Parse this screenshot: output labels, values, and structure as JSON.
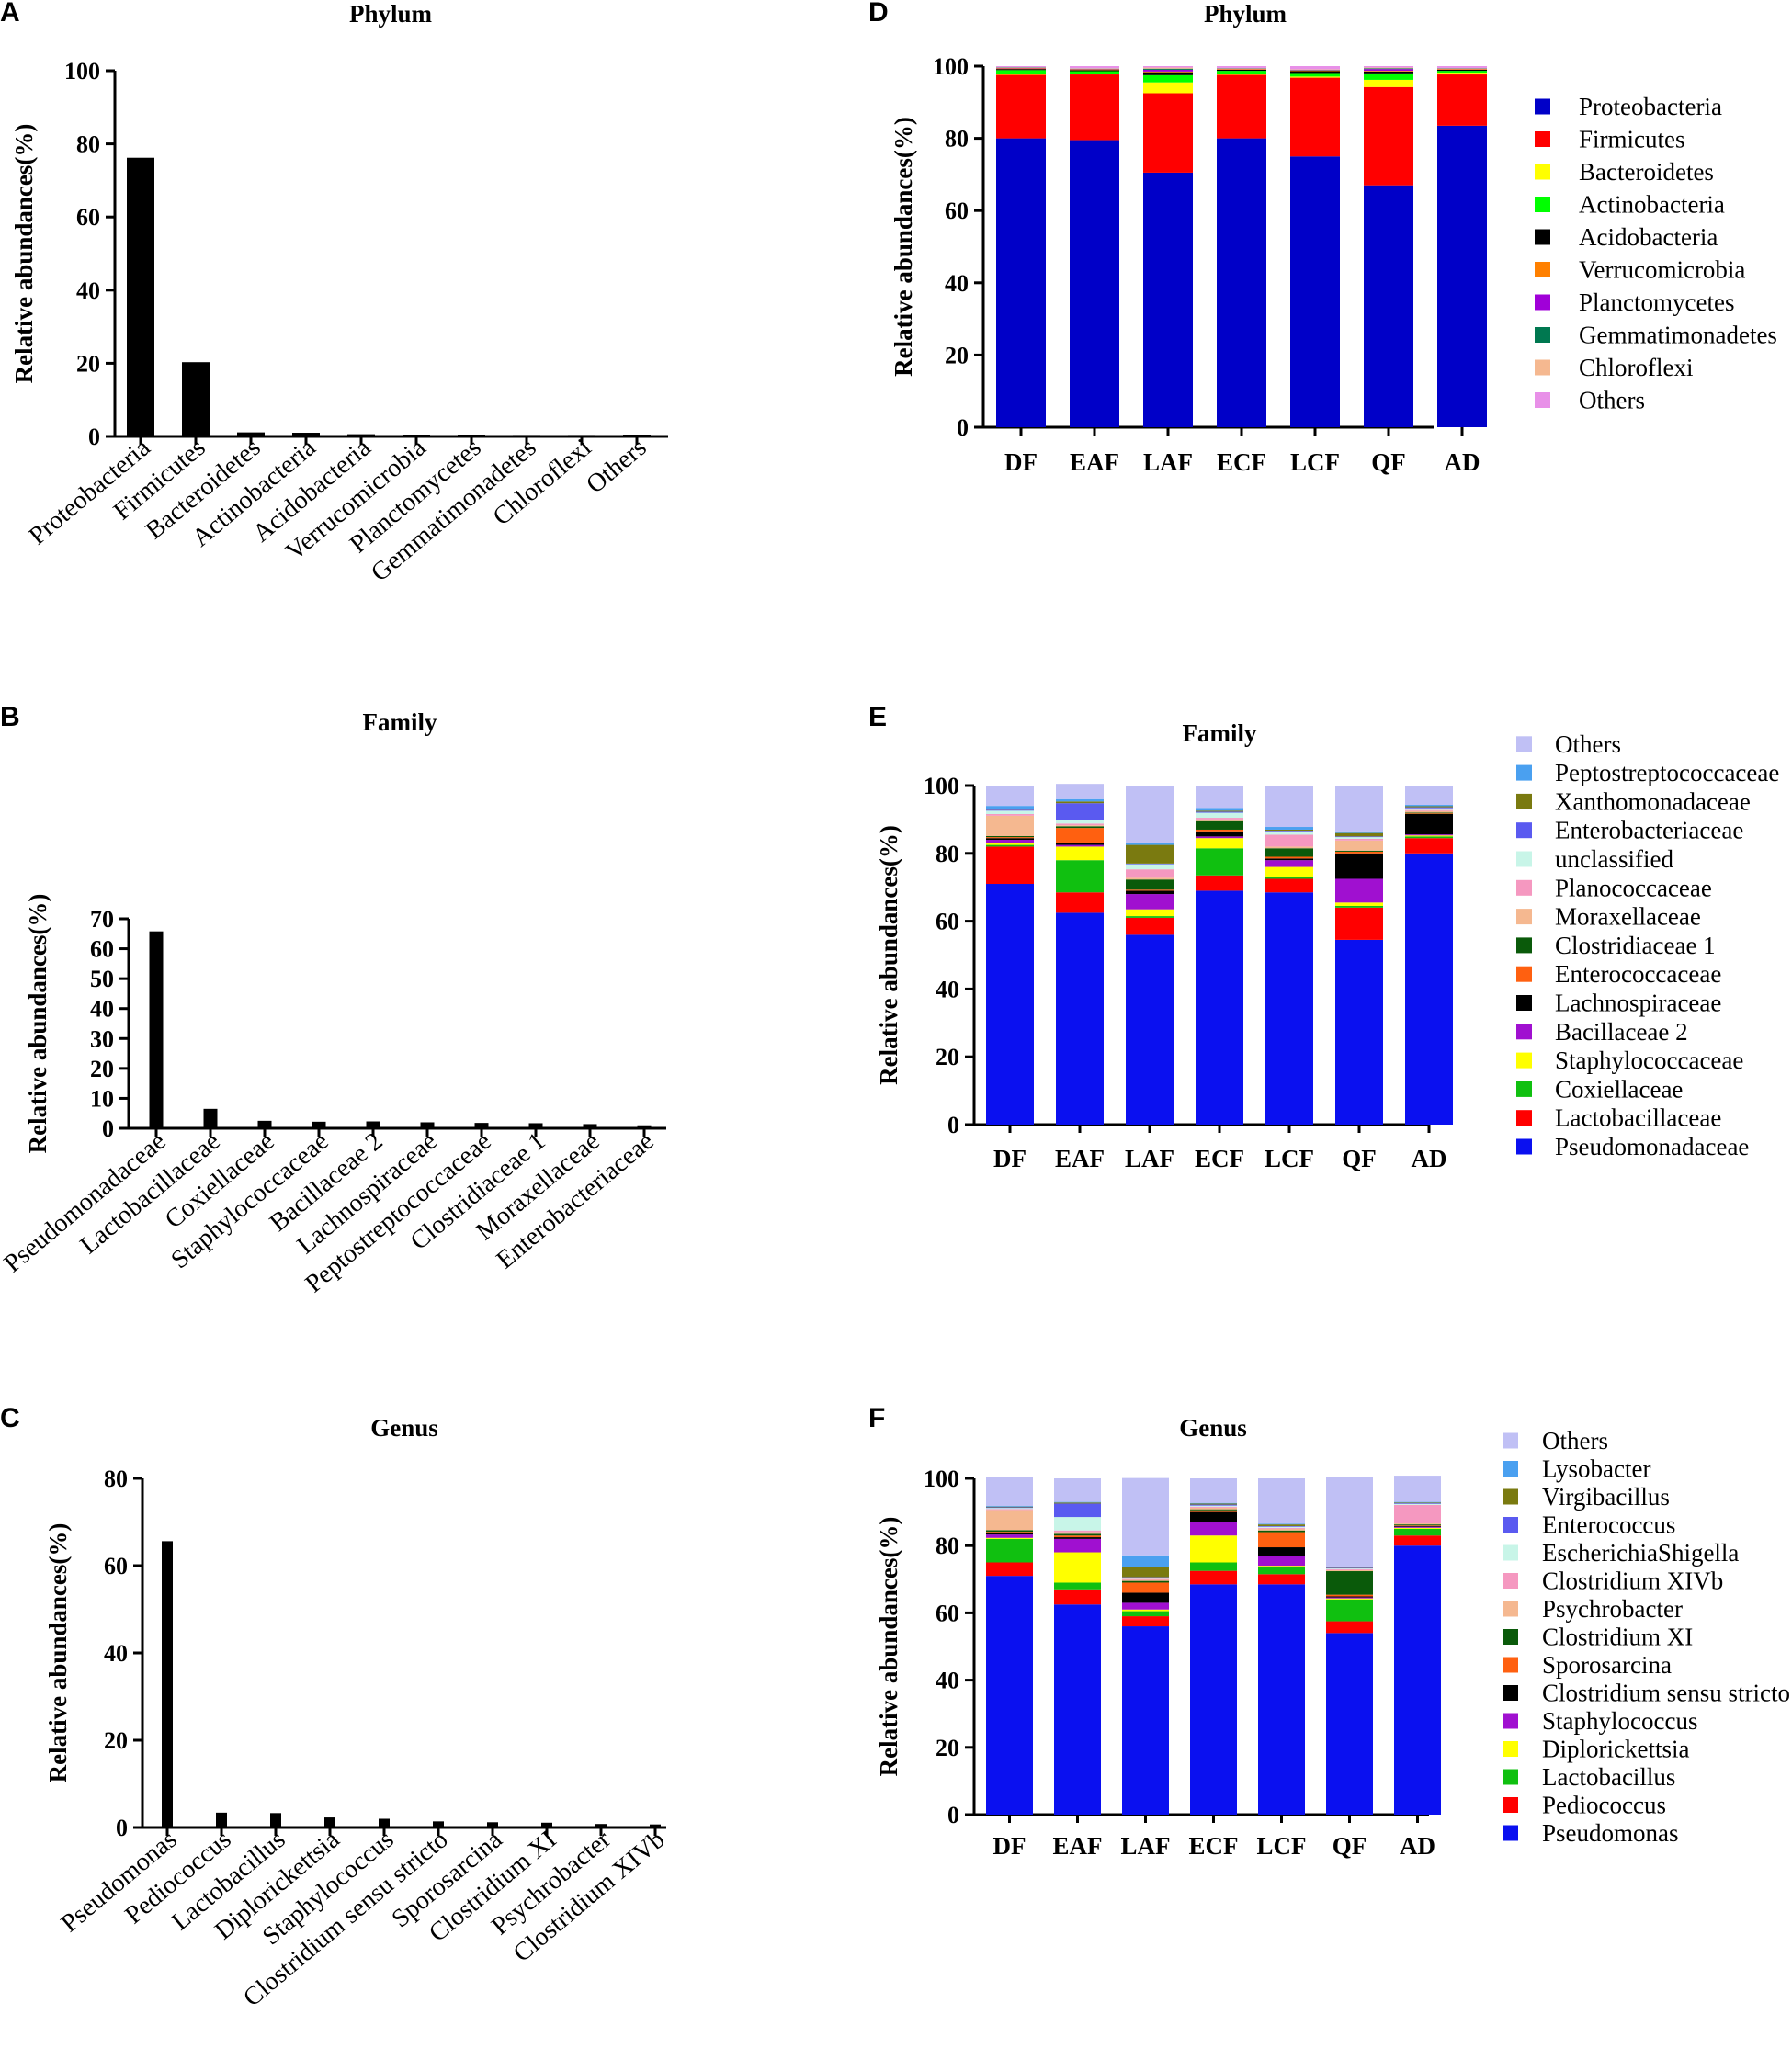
{
  "chart_data": [
    {
      "panel": "A",
      "type": "bar",
      "title": "Phylum",
      "xlabel": "",
      "ylabel": "Relative abundances(%)",
      "ylim": [
        0,
        100
      ],
      "yticks": [
        0,
        20,
        40,
        60,
        80,
        100
      ],
      "categories": [
        "Proteobacteria",
        "Firmicutes",
        "Bacteroidetes",
        "Actinobacteria",
        "Acidobacteria",
        "Verrucomicrobia",
        "Planctomycetes",
        "Gemmatimonadetes",
        "Chloroflexi",
        "Others"
      ],
      "values": [
        76.2,
        20.3,
        1.1,
        1.0,
        0.6,
        0.5,
        0.5,
        0.4,
        0.4,
        0.5
      ]
    },
    {
      "panel": "B",
      "type": "bar",
      "title": "Family",
      "xlabel": "",
      "ylabel": "Relative abundances(%)",
      "ylim": [
        0,
        70
      ],
      "yticks": [
        0,
        10,
        20,
        30,
        40,
        50,
        60,
        70
      ],
      "categories": [
        "Pseudomonadaceae",
        "Lactobacillaceae",
        "Coxiellaceae",
        "Staphylococcaceae",
        "Bacillaceae 2",
        "Lachnospiraceae",
        "Peptostreptococcaceae",
        "Clostridiaceae 1",
        "Moraxellaceae",
        "Enterobacteriaceae"
      ],
      "values": [
        65.8,
        6.5,
        2.5,
        2.2,
        2.3,
        2.0,
        1.8,
        1.7,
        1.4,
        1.0
      ]
    },
    {
      "panel": "C",
      "type": "bar",
      "title": "Genus",
      "xlabel": "",
      "ylabel": "Relative abundances(%)",
      "ylim": [
        0,
        80
      ],
      "yticks": [
        0,
        20,
        40,
        60,
        80
      ],
      "categories": [
        "Pseudomonas",
        "Pediococcus",
        "Lactobacillus",
        "Diplorickettsia",
        "Staphylococcus",
        "Clostridium sensu stricto",
        "Sporosarcina",
        "Clostridium XI",
        "Psychrobacter",
        "Clostridium XIVb"
      ],
      "values": [
        65.6,
        3.4,
        3.3,
        2.3,
        2.0,
        1.4,
        1.2,
        1.1,
        0.8,
        0.7
      ]
    },
    {
      "panel": "D",
      "type": "bar",
      "stacked": true,
      "title": "Phylum",
      "xlabel": "",
      "ylabel": "Relative abundances(%)",
      "ylim": [
        0,
        100
      ],
      "yticks": [
        0,
        20,
        40,
        60,
        80,
        100
      ],
      "categories": [
        "DF",
        "EAF",
        "LAF",
        "ECF",
        "LCF",
        "QF",
        "AD"
      ],
      "legend_position": "right",
      "series": [
        {
          "name": "Proteobacteria",
          "color": "#0000c8",
          "values": [
            80.0,
            79.5,
            70.5,
            80.0,
            75.0,
            67.0,
            83.5
          ]
        },
        {
          "name": "Firmicutes",
          "color": "#ff0000",
          "values": [
            17.6,
            18.2,
            22.0,
            17.6,
            21.8,
            27.2,
            14.2
          ]
        },
        {
          "name": "Bacteroidetes",
          "color": "#ffff00",
          "values": [
            0.3,
            0.2,
            3.0,
            0.3,
            0.3,
            2.0,
            0.5
          ]
        },
        {
          "name": "Actinobacteria",
          "color": "#00ff00",
          "values": [
            1.0,
            0.7,
            2.0,
            0.8,
            1.0,
            1.8,
            0.5
          ]
        },
        {
          "name": "Acidobacteria",
          "color": "#000000",
          "values": [
            0.3,
            0.3,
            0.8,
            0.3,
            0.5,
            0.5,
            0.3
          ]
        },
        {
          "name": "Verrucomicrobia",
          "color": "#ff8000",
          "values": [
            0.2,
            0.2,
            0.2,
            0.2,
            0.2,
            0.2,
            0.2
          ]
        },
        {
          "name": "Planctomycetes",
          "color": "#a000d8",
          "values": [
            0.1,
            0.1,
            0.5,
            0.1,
            0.1,
            0.5,
            0.1
          ]
        },
        {
          "name": "Gemmatimonadetes",
          "color": "#007850",
          "values": [
            0.1,
            0.1,
            0.3,
            0.1,
            0.1,
            0.2,
            0.1
          ]
        },
        {
          "name": "Chloroflexi",
          "color": "#f5b890",
          "values": [
            0.1,
            0.1,
            0.3,
            0.1,
            0.1,
            0.2,
            0.1
          ]
        },
        {
          "name": "Others",
          "color": "#e890e8",
          "values": [
            0.3,
            0.6,
            0.4,
            0.5,
            0.9,
            0.4,
            0.5
          ]
        }
      ]
    },
    {
      "panel": "E",
      "type": "bar",
      "stacked": true,
      "title": "Family",
      "xlabel": "",
      "ylabel": "Relative abundances(%)",
      "ylim": [
        0,
        100
      ],
      "yticks": [
        0,
        20,
        40,
        60,
        80,
        100
      ],
      "categories": [
        "DF",
        "EAF",
        "LAF",
        "ECF",
        "LCF",
        "QF",
        "AD"
      ],
      "legend_position": "right",
      "series": [
        {
          "name": "Pseudomonadaceae",
          "color": "#0a10f0",
          "values": [
            71.0,
            62.5,
            56.0,
            69.0,
            68.5,
            54.5,
            80.0
          ]
        },
        {
          "name": "Lactobacillaceae",
          "color": "#ff0000",
          "values": [
            11.0,
            6.0,
            5.0,
            4.5,
            4.0,
            9.5,
            4.5
          ]
        },
        {
          "name": "Coxiellaceae",
          "color": "#10c010",
          "values": [
            0.5,
            9.5,
            0.5,
            8.0,
            0.5,
            0.5,
            0.5
          ]
        },
        {
          "name": "Staphylococcaceae",
          "color": "#ffff00",
          "values": [
            0.5,
            4.0,
            2.0,
            3.0,
            3.0,
            1.0,
            0.3
          ]
        },
        {
          "name": "Bacillaceae 2",
          "color": "#a010d0",
          "values": [
            1.0,
            0.5,
            4.5,
            0.5,
            2.0,
            7.0,
            0.3
          ]
        },
        {
          "name": "Lachnospiraceae",
          "color": "#000000",
          "values": [
            0.5,
            0.5,
            1.0,
            1.5,
            0.5,
            7.5,
            6.0
          ]
        },
        {
          "name": "Enterococcaceae",
          "color": "#ff6010",
          "values": [
            0.3,
            4.5,
            0.3,
            0.5,
            0.5,
            0.5,
            0.2
          ]
        },
        {
          "name": "Clostridiaceae 1",
          "color": "#0a5a0a",
          "values": [
            0.3,
            0.5,
            3.0,
            2.5,
            2.5,
            0.3,
            0.2
          ]
        },
        {
          "name": "Moraxellaceae",
          "color": "#f5b890",
          "values": [
            6.0,
            0.3,
            0.5,
            0.5,
            0.5,
            3.0,
            0.5
          ]
        },
        {
          "name": "Planococcaceae",
          "color": "#f598c0",
          "values": [
            0.5,
            0.5,
            2.5,
            0.5,
            3.5,
            0.5,
            0.3
          ]
        },
        {
          "name": "unclassified",
          "color": "#c8f5e8",
          "values": [
            1.0,
            1.0,
            1.5,
            1.5,
            1.0,
            0.5,
            0.5
          ]
        },
        {
          "name": "Enterobacteriaceae",
          "color": "#5a5af0",
          "values": [
            0.3,
            5.0,
            0.2,
            0.3,
            0.2,
            0.2,
            0.3
          ]
        },
        {
          "name": "Xanthomonadaceae",
          "color": "#7a7a10",
          "values": [
            0.3,
            0.5,
            5.5,
            0.3,
            0.3,
            1.0,
            0.3
          ]
        },
        {
          "name": "Peptostreptococcaceae",
          "color": "#4aa0f0",
          "values": [
            0.8,
            0.7,
            0.5,
            0.8,
            0.8,
            0.5,
            0.4
          ]
        },
        {
          "name": "Others",
          "color": "#c0c0f5",
          "values": [
            5.8,
            4.5,
            17.0,
            6.6,
            12.2,
            13.5,
            5.5
          ]
        }
      ]
    },
    {
      "panel": "F",
      "type": "bar",
      "stacked": true,
      "title": "Genus",
      "xlabel": "",
      "ylabel": "Relative abundances(%)",
      "ylim": [
        0,
        100
      ],
      "yticks": [
        0,
        20,
        40,
        60,
        80,
        100
      ],
      "categories": [
        "DF",
        "EAF",
        "LAF",
        "ECF",
        "LCF",
        "QF",
        "AD"
      ],
      "legend_position": "right",
      "series": [
        {
          "name": "Pseudomonas",
          "color": "#0a10f0",
          "values": [
            71.0,
            62.5,
            56.0,
            68.5,
            68.5,
            54.0,
            80.0
          ]
        },
        {
          "name": "Pediococcus",
          "color": "#ff0000",
          "values": [
            4.0,
            4.5,
            3.0,
            4.0,
            3.0,
            3.5,
            3.0
          ]
        },
        {
          "name": "Lactobacillus",
          "color": "#10c010",
          "values": [
            7.0,
            2.0,
            1.5,
            2.5,
            2.0,
            6.5,
            2.0
          ]
        },
        {
          "name": "Diplorickettsia",
          "color": "#ffff00",
          "values": [
            0.3,
            9.0,
            0.5,
            8.0,
            0.5,
            0.3,
            0.3
          ]
        },
        {
          "name": "Staphylococcus",
          "color": "#a010d0",
          "values": [
            1.0,
            4.0,
            2.0,
            4.0,
            3.0,
            0.3,
            0.3
          ]
        },
        {
          "name": "Clostridium sensu stricto",
          "color": "#000000",
          "values": [
            0.5,
            0.5,
            3.0,
            3.0,
            2.5,
            0.3,
            0.2
          ]
        },
        {
          "name": "Sporosarcina",
          "color": "#ff6010",
          "values": [
            0.3,
            0.5,
            3.0,
            0.5,
            4.5,
            0.5,
            0.2
          ]
        },
        {
          "name": "Clostridium XI",
          "color": "#0a5a0a",
          "values": [
            0.5,
            0.5,
            0.5,
            0.3,
            0.5,
            7.0,
            0.3
          ]
        },
        {
          "name": "Psychrobacter",
          "color": "#f5b890",
          "values": [
            6.0,
            0.5,
            0.3,
            0.5,
            0.5,
            0.3,
            0.3
          ]
        },
        {
          "name": "Clostridium XIVb",
          "color": "#f598c0",
          "values": [
            0.3,
            0.5,
            0.3,
            0.3,
            0.3,
            0.3,
            5.5
          ]
        },
        {
          "name": "EscherichiaShigella",
          "color": "#c8f5e8",
          "values": [
            0.3,
            4.0,
            0.3,
            0.3,
            0.3,
            0.2,
            0.3
          ]
        },
        {
          "name": "Enterococcus",
          "color": "#5a5af0",
          "values": [
            0.2,
            4.0,
            0.2,
            0.3,
            0.2,
            0.2,
            0.2
          ]
        },
        {
          "name": "Virgibacillus",
          "color": "#7a7a10",
          "values": [
            0.2,
            0.3,
            3.0,
            0.3,
            0.5,
            0.2,
            0.2
          ]
        },
        {
          "name": "Lysobacter",
          "color": "#4aa0f0",
          "values": [
            0.2,
            0.2,
            3.5,
            0.2,
            0.2,
            0.2,
            0.2
          ]
        },
        {
          "name": "Others",
          "color": "#c0c0f5",
          "values": [
            8.5,
            7.0,
            23.0,
            7.3,
            13.5,
            26.7,
            7.8
          ]
        }
      ]
    }
  ]
}
